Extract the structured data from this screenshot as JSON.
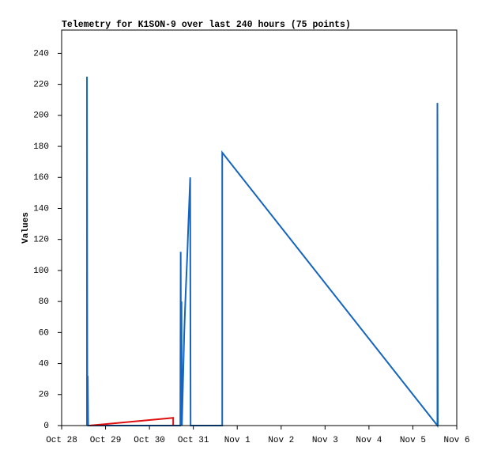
{
  "chart_data": {
    "type": "line",
    "title": "Telemetry for K1SON-9 over last 240 hours (75 points)",
    "ylabel": "Values",
    "xlim": [
      0,
      9
    ],
    "ylim": [
      0,
      255
    ],
    "xticks": [
      {
        "value": 0,
        "label": "Oct 28"
      },
      {
        "value": 1,
        "label": "Oct 29"
      },
      {
        "value": 2,
        "label": "Oct 30"
      },
      {
        "value": 3,
        "label": "Oct 31"
      },
      {
        "value": 4,
        "label": "Nov 1"
      },
      {
        "value": 5,
        "label": "Nov 2"
      },
      {
        "value": 6,
        "label": "Nov 3"
      },
      {
        "value": 7,
        "label": "Nov 4"
      },
      {
        "value": 8,
        "label": "Nov 5"
      },
      {
        "value": 9,
        "label": "Nov 6"
      }
    ],
    "yticks": [
      0,
      20,
      40,
      60,
      80,
      100,
      120,
      140,
      160,
      180,
      200,
      220,
      240
    ],
    "grid": false,
    "series": [
      {
        "color": "#1565c0",
        "x": [
          0.577,
          0.577,
          0.586,
          0.595,
          0.604,
          2.703,
          2.712,
          2.721,
          2.73,
          2.739,
          2.757,
          2.775,
          2.793,
          2.811,
          2.829,
          2.847,
          2.865,
          2.883,
          2.901,
          2.919,
          2.928,
          2.937,
          3.658,
          3.658,
          8.559,
          8.559,
          8.568
        ],
        "values": [
          0,
          225,
          0,
          32,
          0,
          0,
          112,
          0,
          80,
          0,
          20,
          40,
          60,
          75,
          88,
          100,
          112,
          127,
          140,
          153,
          160,
          0,
          0,
          176,
          0,
          208,
          0
        ]
      },
      {
        "color": "#e01010",
        "x": [
          0.631,
          2.541,
          2.541
        ],
        "values": [
          0,
          5,
          0
        ]
      }
    ]
  }
}
